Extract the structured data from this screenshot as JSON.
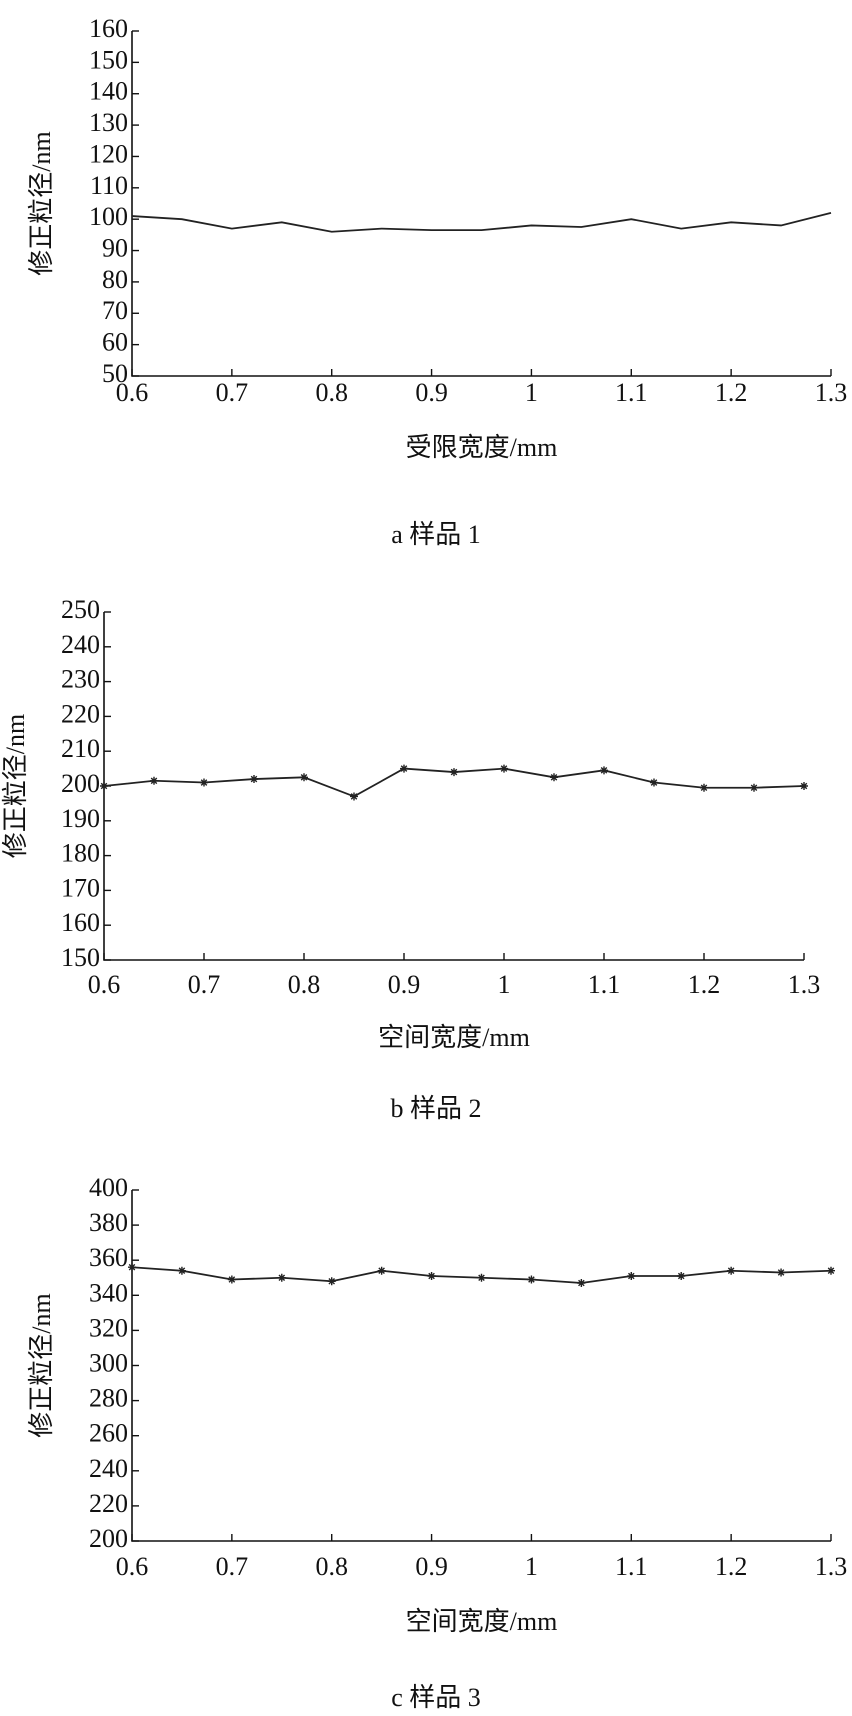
{
  "chart_data": [
    {
      "type": "line",
      "caption": "a 样品 1",
      "x_label": "受限宽度/mm",
      "y_label": "修正粒径/nm",
      "x": [
        0.6,
        0.65,
        0.7,
        0.75,
        0.8,
        0.85,
        0.9,
        0.95,
        1.0,
        1.05,
        1.1,
        1.15,
        1.2,
        1.25,
        1.3
      ],
      "values": [
        101,
        100,
        97,
        99,
        96,
        97,
        96.5,
        96.5,
        98,
        97.5,
        100,
        97,
        99,
        98,
        102
      ],
      "color": "#222222",
      "marker": "none",
      "xlim": [
        0.6,
        1.3
      ],
      "xticks": [
        0.6,
        0.7,
        0.8,
        0.9,
        1,
        1.1,
        1.2,
        1.3
      ],
      "ylim": [
        50,
        160
      ],
      "yticks": [
        50,
        60,
        70,
        80,
        90,
        100,
        110,
        120,
        130,
        140,
        150,
        160
      ],
      "grid": false
    },
    {
      "type": "line",
      "caption": "b 样品 2",
      "x_label": "空间宽度/mm",
      "y_label": "修正粒径/nm",
      "x": [
        0.6,
        0.65,
        0.7,
        0.75,
        0.8,
        0.85,
        0.9,
        0.95,
        1.0,
        1.05,
        1.1,
        1.15,
        1.2,
        1.25,
        1.3
      ],
      "values": [
        200,
        201.5,
        201,
        202,
        202.5,
        197,
        205,
        204,
        205,
        202.5,
        204.5,
        201,
        199.5,
        199.5,
        200
      ],
      "color": "#222222",
      "marker": "star",
      "xlim": [
        0.6,
        1.3
      ],
      "xticks": [
        0.6,
        0.7,
        0.8,
        0.9,
        1,
        1.1,
        1.2,
        1.3
      ],
      "ylim": [
        150,
        250
      ],
      "yticks": [
        150,
        160,
        170,
        180,
        190,
        200,
        210,
        220,
        230,
        240,
        250
      ],
      "grid": false
    },
    {
      "type": "line",
      "caption": "c 样品 3",
      "x_label": "空间宽度/mm",
      "y_label": "修正粒径/nm",
      "x": [
        0.6,
        0.65,
        0.7,
        0.75,
        0.8,
        0.85,
        0.9,
        0.95,
        1.0,
        1.05,
        1.1,
        1.15,
        1.2,
        1.25,
        1.3
      ],
      "values": [
        356,
        354,
        349,
        350,
        348,
        354,
        351,
        350,
        349,
        347,
        351,
        351,
        354,
        353,
        354
      ],
      "color": "#222222",
      "marker": "star",
      "xlim": [
        0.6,
        1.3
      ],
      "xticks": [
        0.6,
        0.7,
        0.8,
        0.9,
        1,
        1.1,
        1.2,
        1.3
      ],
      "ylim": [
        200,
        400
      ],
      "yticks": [
        200,
        220,
        240,
        260,
        280,
        300,
        320,
        340,
        360,
        380,
        400
      ],
      "grid": false
    }
  ]
}
